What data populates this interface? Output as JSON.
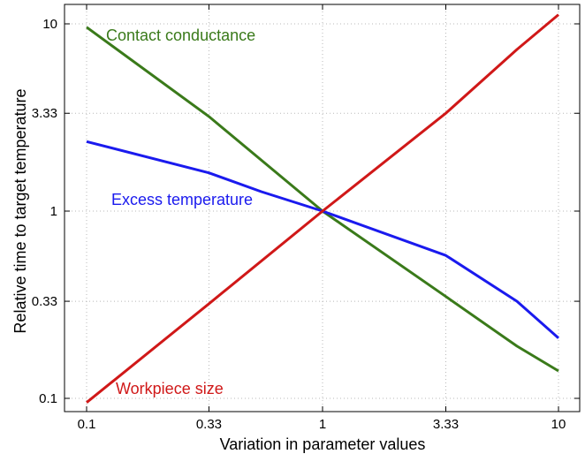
{
  "chart_data": {
    "type": "line",
    "xlabel": "Variation in parameter values",
    "ylabel": "Relative time to target temperature",
    "x_scale": "log",
    "y_scale": "log",
    "xlim": [
      0.1,
      10
    ],
    "ylim": [
      0.1,
      10
    ],
    "x_ticks": [
      0.1,
      0.33,
      1,
      3.33,
      10
    ],
    "x_tick_labels": [
      "0.1",
      "0.33",
      "1",
      "3.33",
      "10"
    ],
    "y_ticks": [
      0.1,
      0.33,
      1,
      3.33,
      10
    ],
    "y_tick_labels": [
      "0.1",
      "0.33",
      "1",
      "3.33",
      "10"
    ],
    "grid": true,
    "legend": "inline labels",
    "series": [
      {
        "name": "Contact conductance",
        "color": "#3a7a1a",
        "x": [
          0.1,
          0.33,
          1,
          3.33,
          6.67,
          10
        ],
        "y": [
          9.6,
          3.2,
          1.0,
          0.35,
          0.19,
          0.14
        ]
      },
      {
        "name": "Excess temperature",
        "color": "#1a1aee",
        "x": [
          0.1,
          0.33,
          0.55,
          1,
          3.33,
          6.67,
          10
        ],
        "y": [
          2.35,
          1.6,
          1.27,
          1.0,
          0.58,
          0.33,
          0.21
        ]
      },
      {
        "name": "Workpiece size",
        "color": "#d01818",
        "x": [
          0.1,
          0.33,
          1,
          3.33,
          6.67,
          10
        ],
        "y": [
          0.095,
          0.32,
          1.0,
          3.33,
          7.3,
          11.2
        ]
      }
    ]
  }
}
